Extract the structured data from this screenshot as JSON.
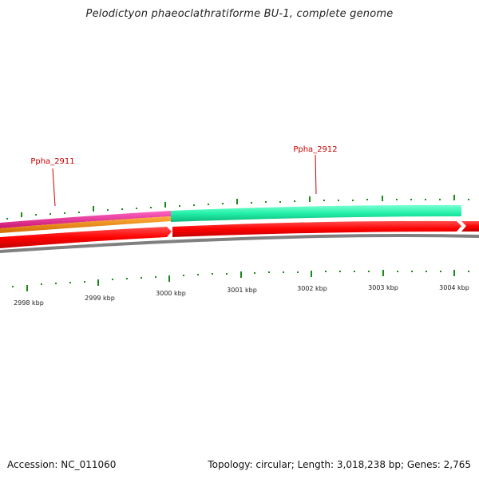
{
  "title": "Pelodictyon phaeoclathratiforme BU-1, complete genome",
  "genes": [
    {
      "label": "Ppha_2911"
    },
    {
      "label": "Ppha_2912"
    }
  ],
  "kbp_labels": [
    "2998 kbp",
    "2999 kbp",
    "3000 kbp",
    "3001 kbp",
    "3002 kbp",
    "3003 kbp",
    "3004 kbp"
  ],
  "colors": {
    "pink_track": "#e8208a",
    "orange_track": "#f08a00",
    "green_track": "#22f0a8",
    "red_track": "#ff0000",
    "backbone": "#808080",
    "tick": "#1a8a1a",
    "gene_label": "#cc0000"
  },
  "footer": {
    "accession": "Accession: NC_011060",
    "summary": "Topology: circular; Length: 3,018,238 bp; Genes: 2,765"
  }
}
